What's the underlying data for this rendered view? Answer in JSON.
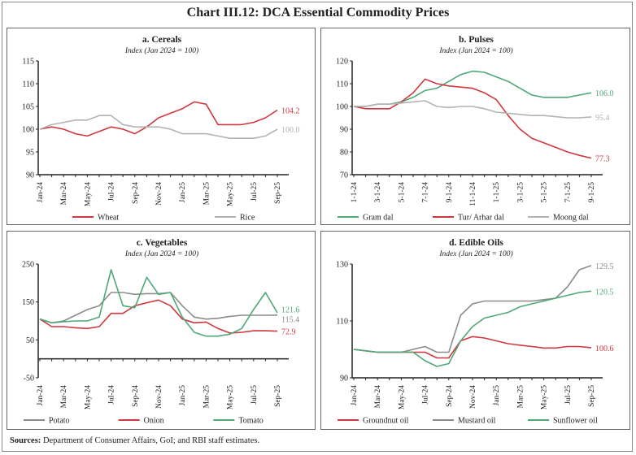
{
  "title": "Chart III.12: DCA Essential Commodity Prices",
  "sources_label": "Sources:",
  "sources_text": " Department of Consumer Affairs, GoI; and RBI staff estimates.",
  "chart_data": [
    {
      "type": "line",
      "title": "a. Cereals",
      "subtitle": "Index (Jan 2024 = 100)",
      "x": [
        "Jan-24",
        "Feb-24",
        "Mar-24",
        "Apr-24",
        "May-24",
        "Jun-24",
        "Jul-24",
        "Aug-24",
        "Sep-24",
        "Oct-24",
        "Nov-24",
        "Dec-24",
        "Jan-25",
        "Feb-25",
        "Mar-25",
        "Apr-25",
        "May-25",
        "Jun-25",
        "Jul-25",
        "Aug-25",
        "Sep-25"
      ],
      "x_tick_labels": [
        "Jan-24",
        "Mar-24",
        "May-24",
        "Jul-24",
        "Sep-24",
        "Nov-24",
        "Jan-25",
        "Mar-25",
        "May-25",
        "Jul-25",
        "Sep-25"
      ],
      "ylim": [
        90,
        115
      ],
      "y_ticks": [
        90,
        95,
        100,
        105,
        110,
        115
      ],
      "x_axis_crossing": 90,
      "grid": false,
      "legend_position": "bottom",
      "series": [
        {
          "name": "Wheat",
          "color": "#d0373f",
          "end_label": "104.2",
          "values": [
            100,
            100.5,
            100,
            99,
            98.5,
            99.5,
            100.5,
            100,
            99,
            100.5,
            102.5,
            103.5,
            104.5,
            106,
            105.5,
            101,
            101,
            101,
            101.5,
            102.5,
            104.2
          ]
        },
        {
          "name": "Rice",
          "color": "#b3b3b3",
          "end_label": "100.0",
          "values": [
            100,
            101,
            101.5,
            102,
            102,
            103,
            103,
            101,
            100.5,
            100.5,
            100.5,
            100,
            99,
            99,
            99,
            98.5,
            98,
            98,
            98,
            98.5,
            100.0
          ]
        }
      ]
    },
    {
      "type": "line",
      "title": "b. Pulses",
      "subtitle": "Index (Jan 2024 = 100)",
      "x": [
        "1-1-24",
        "2-1-24",
        "3-1-24",
        "4-1-24",
        "5-1-24",
        "6-1-24",
        "7-1-24",
        "8-1-24",
        "9-1-24",
        "10-1-24",
        "11-1-24",
        "12-1-24",
        "1-1-25",
        "2-1-25",
        "3-1-25",
        "4-1-25",
        "5-1-25",
        "6-1-25",
        "7-1-25",
        "8-1-25",
        "9-1-25"
      ],
      "x_tick_labels": [
        "1-1-24",
        "3-1-24",
        "5-1-24",
        "7-1-24",
        "9-1-24",
        "11-1-24",
        "1-1-25",
        "3-1-25",
        "5-1-25",
        "7-1-25",
        "9-1-25"
      ],
      "ylim": [
        70,
        120
      ],
      "y_ticks": [
        70,
        80,
        90,
        100,
        110,
        120
      ],
      "x_axis_crossing": 70,
      "grid": false,
      "legend_position": "bottom",
      "series": [
        {
          "name": "Gram dal",
          "color": "#4fa877",
          "end_label": "106.0",
          "values": [
            100,
            100,
            101,
            101,
            102,
            104,
            107,
            108,
            111,
            114,
            115.5,
            115,
            113,
            111,
            108,
            105,
            104,
            104,
            104,
            105,
            106.0
          ]
        },
        {
          "name": "Tur/ Arhar dal",
          "color": "#d0373f",
          "end_label": "77.3",
          "values": [
            100,
            99,
            99,
            99,
            102,
            106,
            112,
            110,
            109,
            108.5,
            108,
            106,
            103,
            96,
            90,
            86,
            84,
            82,
            80,
            78.5,
            77.3
          ]
        },
        {
          "name": "Moong dal",
          "color": "#b3b3b3",
          "end_label": "95.4",
          "values": [
            100,
            100,
            101,
            101,
            101.5,
            102,
            102.5,
            100,
            99.5,
            100,
            100,
            99,
            97.5,
            97,
            96.5,
            96,
            96,
            95.5,
            95,
            95,
            95.4
          ]
        }
      ]
    },
    {
      "type": "line",
      "title": "c. Vegetables",
      "subtitle": "Index (Jan 2024 = 100)",
      "x": [
        "Jan-24",
        "Feb-24",
        "Mar-24",
        "Apr-24",
        "May-24",
        "Jun-24",
        "Jul-24",
        "Aug-24",
        "Sep-24",
        "Oct-24",
        "Nov-24",
        "Dec-24",
        "Jan-25",
        "Feb-25",
        "Mar-25",
        "Apr-25",
        "May-25",
        "Jun-25",
        "Jul-25",
        "Aug-25",
        "Sep-25"
      ],
      "x_tick_labels": [
        "Jan-24",
        "Mar-24",
        "May-24",
        "Jul-24",
        "Sep-24",
        "Nov-24",
        "Jan-25",
        "Mar-25",
        "May-25",
        "Jul-25",
        "Sep-25"
      ],
      "ylim": [
        -50,
        250
      ],
      "y_ticks": [
        -50,
        50,
        150,
        250
      ],
      "x_axis_crossing": 0,
      "grid": false,
      "legend_position": "bottom",
      "series": [
        {
          "name": "Potato",
          "color": "#8c8c8c",
          "end_label": "115.4",
          "values": [
            105,
            95,
            100,
            115,
            130,
            140,
            175,
            175,
            170,
            172,
            172,
            175,
            140,
            110,
            105,
            107,
            112,
            115,
            115,
            115,
            115.4
          ]
        },
        {
          "name": "Onion",
          "color": "#d0373f",
          "end_label": "72.9",
          "values": [
            105,
            85,
            85,
            82,
            80,
            85,
            120,
            120,
            140,
            148,
            155,
            140,
            105,
            95,
            97,
            80,
            68,
            70,
            74,
            74,
            72.9
          ]
        },
        {
          "name": "Tomato",
          "color": "#4fa877",
          "end_label": "121.6",
          "values": [
            105,
            95,
            98,
            100,
            100,
            110,
            235,
            140,
            135,
            215,
            170,
            175,
            110,
            70,
            60,
            60,
            65,
            80,
            130,
            175,
            121.6
          ]
        }
      ]
    },
    {
      "type": "line",
      "title": "d. Edible Oils",
      "subtitle": "Index (Jan 2024 = 100)",
      "x": [
        "Jan-24",
        "Feb-24",
        "Mar-24",
        "Apr-24",
        "May-24",
        "Jun-24",
        "Jul-24",
        "Aug-24",
        "Sep-24",
        "Oct-24",
        "Nov-24",
        "Dec-24",
        "Jan-25",
        "Feb-25",
        "Mar-25",
        "Apr-25",
        "May-25",
        "Jun-25",
        "Jul-25",
        "Aug-25",
        "Sep-25"
      ],
      "x_tick_labels": [
        "Jan-24",
        "Mar-24",
        "May-24",
        "Jul-24",
        "Sep-24",
        "Nov-24",
        "Jan-25",
        "Mar-25",
        "May-25",
        "Jul-25",
        "Sep-25"
      ],
      "ylim": [
        90,
        130
      ],
      "y_ticks": [
        90,
        110,
        130
      ],
      "x_axis_crossing": 90,
      "grid": false,
      "legend_position": "bottom",
      "series": [
        {
          "name": "Groundnut oil",
          "color": "#d0373f",
          "end_label": "100.6",
          "values": [
            100,
            99.5,
            99,
            99,
            99,
            99,
            99,
            97,
            97,
            103,
            104.5,
            104,
            103,
            102,
            101.5,
            101,
            100.5,
            100.5,
            101,
            101,
            100.6
          ]
        },
        {
          "name": "Mustard oil",
          "color": "#8c8c8c",
          "end_label": "129.5",
          "values": [
            100,
            99.5,
            99,
            99,
            99,
            100,
            101,
            99,
            99,
            112,
            116,
            117,
            117,
            117,
            117,
            117,
            117.5,
            118,
            122,
            128,
            129.5
          ]
        },
        {
          "name": "Sunflower oil",
          "color": "#4fa877",
          "end_label": "120.5",
          "values": [
            100,
            99.5,
            99,
            99,
            99,
            99,
            96,
            94,
            95,
            103,
            108,
            111,
            112,
            113,
            115,
            116,
            117,
            118,
            119,
            120,
            120.5
          ]
        }
      ]
    }
  ]
}
